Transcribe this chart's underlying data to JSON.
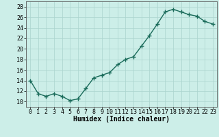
{
  "x": [
    0,
    1,
    2,
    3,
    4,
    5,
    6,
    7,
    8,
    9,
    10,
    11,
    12,
    13,
    14,
    15,
    16,
    17,
    18,
    19,
    20,
    21,
    22,
    23
  ],
  "y": [
    14,
    11.5,
    11,
    11.5,
    11,
    10.2,
    10.5,
    12.5,
    14.5,
    15,
    15.5,
    17,
    18,
    18.5,
    20.5,
    22.5,
    24.7,
    27,
    27.5,
    27,
    26.5,
    26.2,
    25.2,
    24.7
  ],
  "line_color": "#1a6b5a",
  "marker": "+",
  "marker_size": 4,
  "bg_color": "#cceee8",
  "grid_color": "#aad4ce",
  "xlabel": "Humidex (Indice chaleur)",
  "xlim": [
    -0.5,
    23.5
  ],
  "ylim": [
    9,
    29
  ],
  "yticks": [
    10,
    12,
    14,
    16,
    18,
    20,
    22,
    24,
    26,
    28
  ],
  "xticks": [
    0,
    1,
    2,
    3,
    4,
    5,
    6,
    7,
    8,
    9,
    10,
    11,
    12,
    13,
    14,
    15,
    16,
    17,
    18,
    19,
    20,
    21,
    22,
    23
  ],
  "xlabel_fontsize": 7,
  "tick_fontsize": 6,
  "linewidth": 1.0
}
